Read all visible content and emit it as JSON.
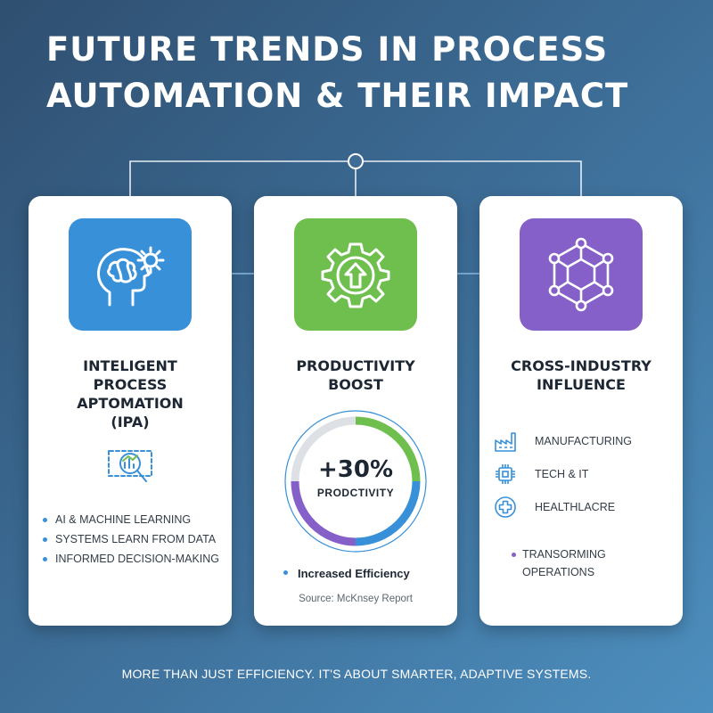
{
  "title": {
    "line1": "FUTURE TRENDS IN PROCESS",
    "line2": "AUTOMATION & THEIR IMPACT"
  },
  "cards": [
    {
      "heading_lines": [
        "INTELIGENT",
        "PROCESS",
        "APTOMATION",
        "(IPA)"
      ],
      "icons": [
        "brain-gear-icon",
        "magnifier-chart-icon"
      ],
      "color": "#3790d8",
      "bullets": [
        "AI & MACHINE LEARNING",
        "SYSTEMS LEARN FROM DATA",
        "INFORMED DECISION-MAKING"
      ]
    },
    {
      "heading_lines": [
        "PRODUCTIVITY",
        "BOOST"
      ],
      "icons": [
        "gear-arrow-up-icon"
      ],
      "color": "#6fbf4e",
      "gauge_value": "+30%",
      "gauge_label": "PRODCTIVITY",
      "efficiency": "Increased Efficiency",
      "source": "Source: McKnsey Report"
    },
    {
      "heading_lines": [
        "CROSS-INDUSTRY",
        "INFLUENCE"
      ],
      "icons": [
        "network-hexagon-icon"
      ],
      "color": "#8660c9",
      "industries": [
        {
          "label": "MANUFACTURING",
          "icon": "factory-icon"
        },
        {
          "label": "TECH & IT",
          "icon": "chip-icon"
        },
        {
          "label": "HEALTHLACRE",
          "icon": "medical-cross-icon"
        }
      ],
      "transform_lines": [
        "TRANSORMING",
        "OPERATIONS"
      ]
    }
  ],
  "footer": "MORE THAN JUST EFFICIENCY. IT'S ABOUT SMARTER, ADAPTIVE SYSTEMS.",
  "colors": {
    "blue": "#3790d8",
    "green": "#6fbf4e",
    "purple": "#8660c9",
    "gauge_gray": "#dde0e4"
  }
}
